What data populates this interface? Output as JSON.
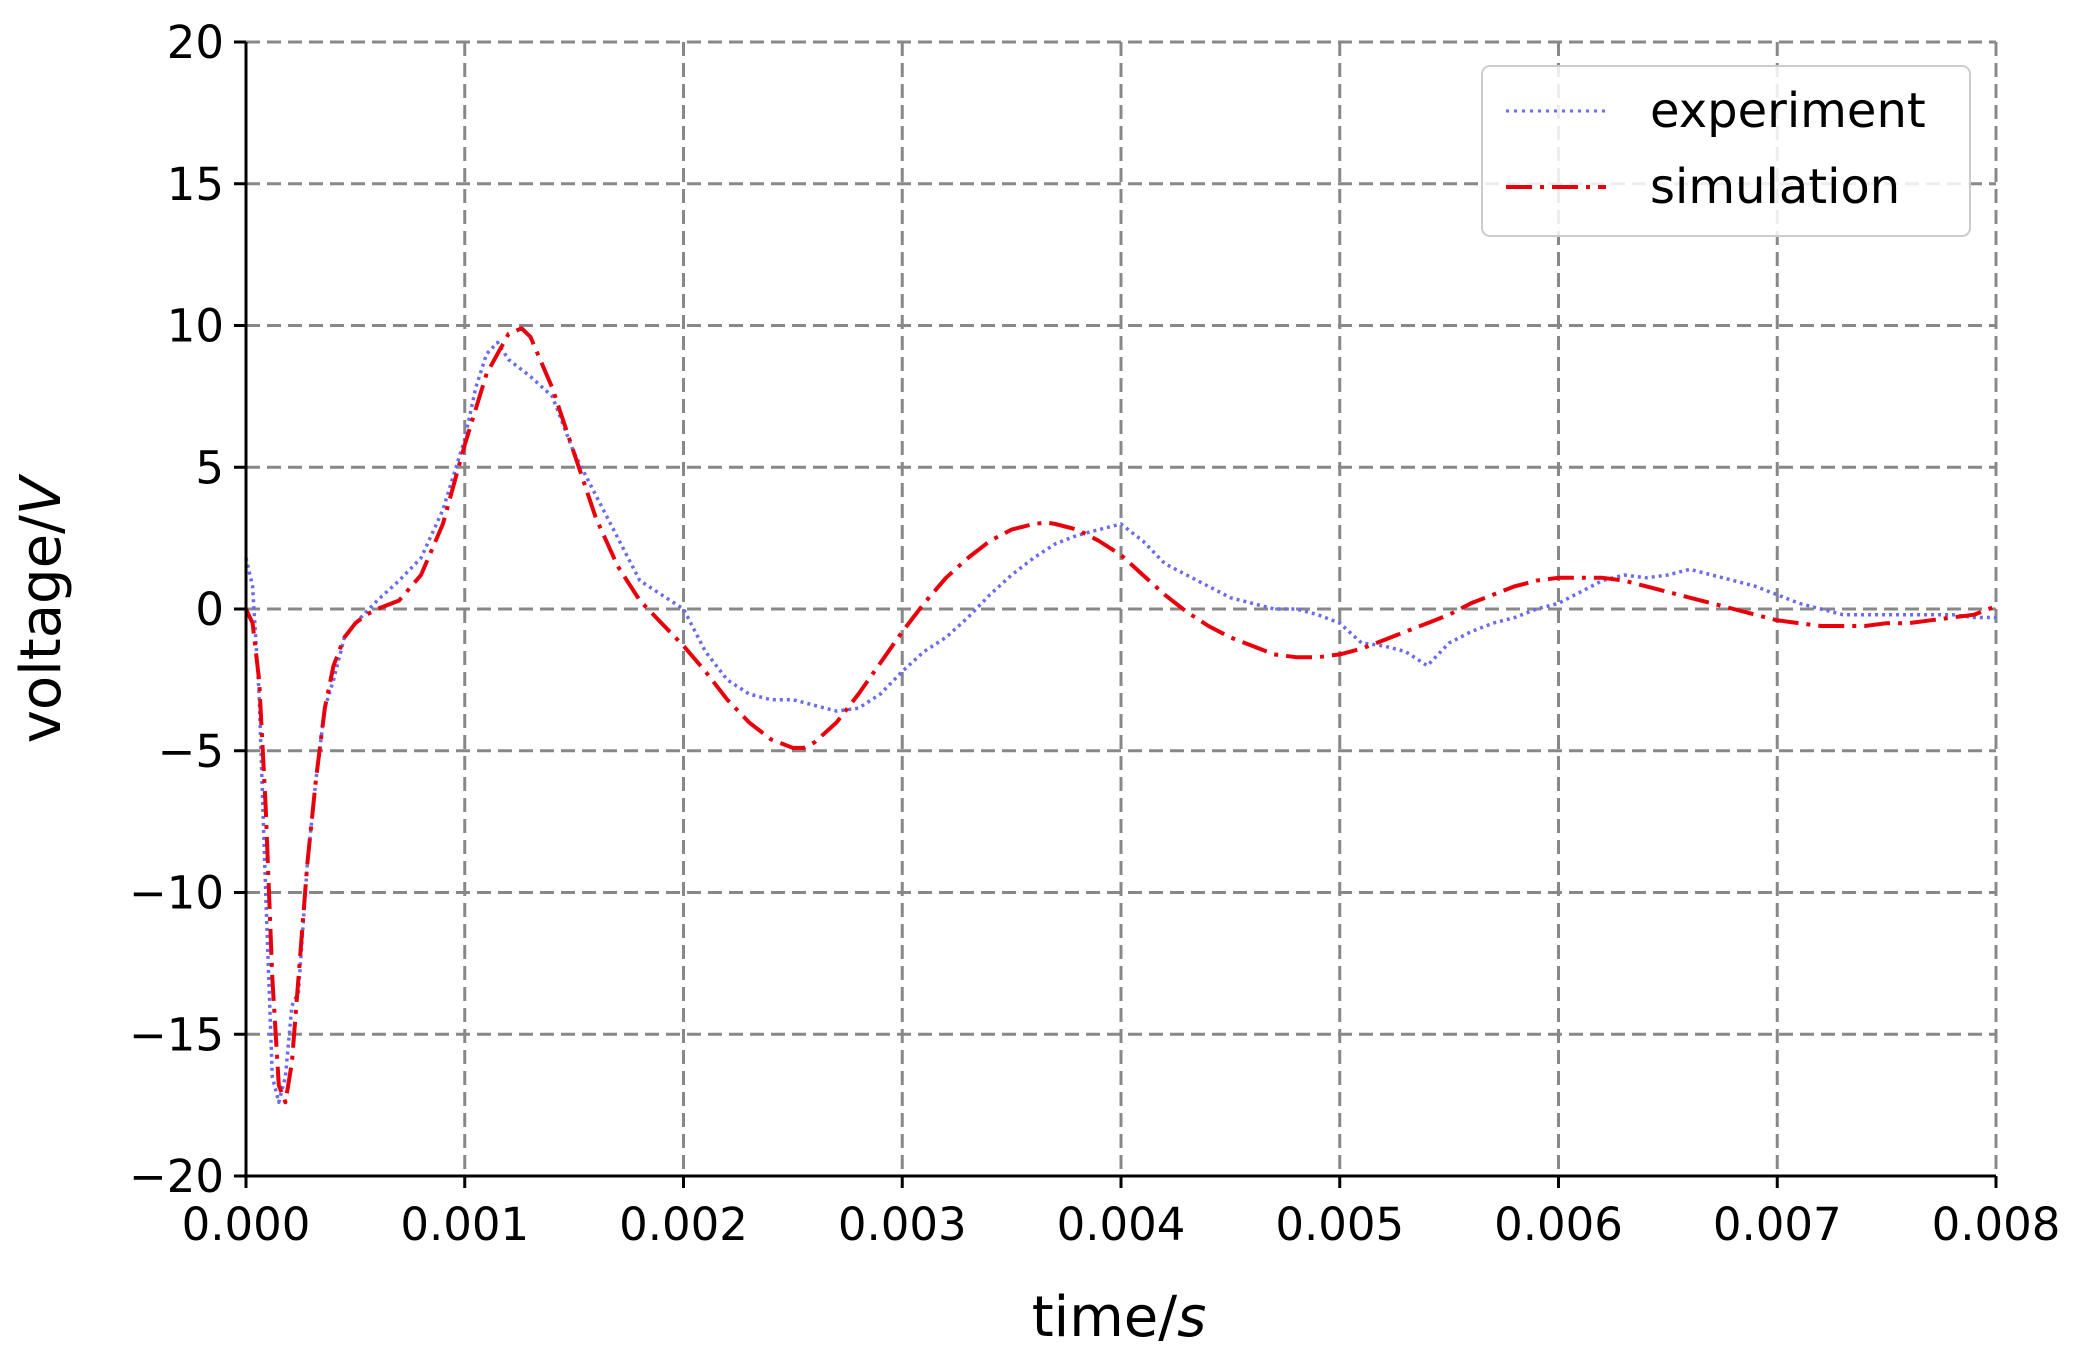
{
  "chart_data": {
    "type": "line",
    "xlabel": "time/s",
    "xlabel_parts": [
      "time/",
      "s"
    ],
    "ylabel": "voltage/V",
    "ylabel_parts": [
      "voltage/",
      "V"
    ],
    "xlim": [
      0.0,
      0.008
    ],
    "ylim": [
      -20,
      20
    ],
    "xticks": [
      0.0,
      0.001,
      0.002,
      0.003,
      0.004,
      0.005,
      0.006,
      0.007,
      0.008
    ],
    "xtick_labels": [
      "0.000",
      "0.001",
      "0.002",
      "0.003",
      "0.004",
      "0.005",
      "0.006",
      "0.007",
      "0.008"
    ],
    "yticks": [
      -20,
      -15,
      -10,
      -5,
      0,
      5,
      10,
      15,
      20
    ],
    "ytick_labels": [
      "−20",
      "−15",
      "−10",
      "−5",
      "0",
      "5",
      "10",
      "15",
      "20"
    ],
    "grid": true,
    "legend_position": "top-right",
    "series": [
      {
        "name": "experiment",
        "style": "dotted",
        "color": "#6b6bf0",
        "x": [
          0.0,
          3e-05,
          6e-05,
          9e-05,
          0.00012,
          0.00015,
          0.00018,
          0.00021,
          0.00024,
          0.00028,
          0.00032,
          0.00036,
          0.0004,
          0.00045,
          0.0005,
          0.0006,
          0.0007,
          0.0008,
          0.0009,
          0.001,
          0.00105,
          0.0011,
          0.00115,
          0.0012,
          0.0013,
          0.0014,
          0.0015,
          0.0016,
          0.0017,
          0.0018,
          0.0019,
          0.002,
          0.0021,
          0.0022,
          0.0023,
          0.0024,
          0.0025,
          0.0026,
          0.0027,
          0.0028,
          0.0029,
          0.003,
          0.0031,
          0.0032,
          0.0033,
          0.0034,
          0.0035,
          0.0036,
          0.0037,
          0.0038,
          0.0039,
          0.004,
          0.0041,
          0.0042,
          0.0043,
          0.0044,
          0.0045,
          0.0046,
          0.0047,
          0.0048,
          0.0049,
          0.005,
          0.0051,
          0.0052,
          0.0053,
          0.0054,
          0.0055,
          0.0056,
          0.0057,
          0.0058,
          0.0059,
          0.006,
          0.0061,
          0.0062,
          0.0063,
          0.0064,
          0.0065,
          0.0066,
          0.0067,
          0.0068,
          0.0069,
          0.007,
          0.0071,
          0.0072,
          0.0073,
          0.0074,
          0.0075,
          0.0076,
          0.0077,
          0.0078,
          0.0079,
          0.008
        ],
        "y": [
          1.8,
          0.8,
          -3.0,
          -10.0,
          -16.5,
          -17.4,
          -16.5,
          -14.0,
          -13.5,
          -9.0,
          -6.0,
          -3.5,
          -2.5,
          -1.0,
          -0.5,
          0.3,
          1.0,
          1.8,
          3.5,
          6.0,
          7.8,
          9.0,
          9.4,
          8.8,
          8.2,
          7.5,
          5.5,
          4.0,
          2.5,
          1.0,
          0.5,
          0.0,
          -1.5,
          -2.5,
          -3.0,
          -3.2,
          -3.2,
          -3.4,
          -3.6,
          -3.5,
          -3.0,
          -2.2,
          -1.5,
          -1.0,
          -0.3,
          0.5,
          1.2,
          1.8,
          2.3,
          2.6,
          2.8,
          3.0,
          2.4,
          1.6,
          1.2,
          0.8,
          0.4,
          0.2,
          0.0,
          0.0,
          -0.2,
          -0.5,
          -1.2,
          -1.3,
          -1.5,
          -2.0,
          -1.2,
          -0.8,
          -0.5,
          -0.3,
          0.0,
          0.2,
          0.6,
          1.0,
          1.2,
          1.1,
          1.2,
          1.4,
          1.2,
          1.0,
          0.8,
          0.5,
          0.2,
          0.0,
          -0.2,
          -0.2,
          -0.2,
          -0.2,
          -0.2,
          -0.2,
          -0.3,
          -0.3
        ]
      },
      {
        "name": "simulation",
        "style": "dashdot",
        "color": "#e8000b",
        "x": [
          0.0,
          3e-05,
          6e-05,
          9e-05,
          0.00012,
          0.00015,
          0.00018,
          0.00021,
          0.00024,
          0.00028,
          0.00032,
          0.00036,
          0.0004,
          0.00045,
          0.0005,
          0.00055,
          0.0006,
          0.0007,
          0.0008,
          0.0009,
          0.001,
          0.0011,
          0.0012,
          0.00126,
          0.0013,
          0.0014,
          0.0015,
          0.0016,
          0.0017,
          0.0018,
          0.0019,
          0.002,
          0.0021,
          0.0022,
          0.0023,
          0.0024,
          0.0025,
          0.00255,
          0.0026,
          0.0027,
          0.0028,
          0.0029,
          0.003,
          0.0031,
          0.0032,
          0.0033,
          0.0034,
          0.0035,
          0.0036,
          0.00366,
          0.0037,
          0.0038,
          0.0039,
          0.004,
          0.0041,
          0.0042,
          0.0043,
          0.0044,
          0.0045,
          0.0046,
          0.0047,
          0.0048,
          0.0049,
          0.005,
          0.0051,
          0.0052,
          0.0053,
          0.0054,
          0.0055,
          0.0056,
          0.0057,
          0.0058,
          0.0059,
          0.006,
          0.0061,
          0.0062,
          0.0063,
          0.0064,
          0.0065,
          0.0066,
          0.0067,
          0.0068,
          0.0069,
          0.007,
          0.0071,
          0.0072,
          0.0073,
          0.0074,
          0.0075,
          0.0076,
          0.0077,
          0.0078,
          0.0079,
          0.008
        ],
        "y": [
          0.0,
          -0.5,
          -2.5,
          -7.0,
          -13.0,
          -16.8,
          -17.4,
          -16.0,
          -13.0,
          -9.0,
          -6.0,
          -3.5,
          -2.0,
          -1.0,
          -0.5,
          -0.2,
          0.0,
          0.3,
          1.2,
          3.0,
          5.8,
          8.3,
          9.7,
          9.9,
          9.6,
          7.8,
          5.5,
          3.2,
          1.5,
          0.3,
          -0.5,
          -1.3,
          -2.2,
          -3.2,
          -4.0,
          -4.6,
          -4.9,
          -4.9,
          -4.7,
          -4.0,
          -3.0,
          -1.9,
          -0.8,
          0.2,
          1.1,
          1.8,
          2.4,
          2.8,
          3.0,
          3.05,
          3.0,
          2.8,
          2.4,
          1.9,
          1.2,
          0.5,
          -0.1,
          -0.6,
          -1.0,
          -1.3,
          -1.6,
          -1.7,
          -1.7,
          -1.6,
          -1.4,
          -1.1,
          -0.8,
          -0.5,
          -0.2,
          0.2,
          0.5,
          0.8,
          1.0,
          1.1,
          1.1,
          1.1,
          1.0,
          0.8,
          0.6,
          0.4,
          0.2,
          0.0,
          -0.2,
          -0.4,
          -0.5,
          -0.6,
          -0.6,
          -0.6,
          -0.5,
          -0.5,
          -0.4,
          -0.3,
          -0.2,
          0.1
        ]
      }
    ]
  }
}
